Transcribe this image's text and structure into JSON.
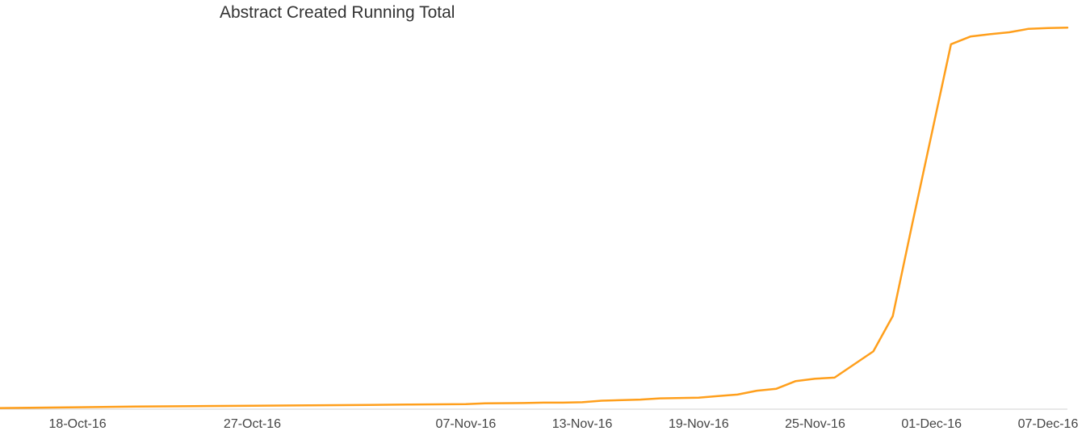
{
  "chart_data": {
    "type": "line",
    "title": "Abstract Created Running Total",
    "xlabel": "",
    "ylabel": "",
    "line_color": "#FF9F1C",
    "axis_color": "#D0D0D0",
    "grid": false,
    "x_ticks": [
      "18-Oct-16",
      "27-Oct-16",
      "07-Nov-16",
      "13-Nov-16",
      "19-Nov-16",
      "25-Nov-16",
      "01-Dec-16",
      "07-Dec-16"
    ],
    "ylim": [
      0,
      1000
    ],
    "series": [
      {
        "points": [
          {
            "x": "2016-10-14",
            "y": 3
          },
          {
            "x": "2016-10-18",
            "y": 5
          },
          {
            "x": "2016-10-21",
            "y": 7
          },
          {
            "x": "2016-10-24",
            "y": 8
          },
          {
            "x": "2016-10-27",
            "y": 9
          },
          {
            "x": "2016-10-30",
            "y": 10
          },
          {
            "x": "2016-11-02",
            "y": 11
          },
          {
            "x": "2016-11-04",
            "y": 12
          },
          {
            "x": "2016-11-07",
            "y": 13
          },
          {
            "x": "2016-11-08",
            "y": 15
          },
          {
            "x": "2016-11-10",
            "y": 16
          },
          {
            "x": "2016-11-11",
            "y": 17
          },
          {
            "x": "2016-11-12",
            "y": 17
          },
          {
            "x": "2016-11-13",
            "y": 18
          },
          {
            "x": "2016-11-14",
            "y": 22
          },
          {
            "x": "2016-11-16",
            "y": 25
          },
          {
            "x": "2016-11-17",
            "y": 28
          },
          {
            "x": "2016-11-19",
            "y": 30
          },
          {
            "x": "2016-11-20",
            "y": 34
          },
          {
            "x": "2016-11-21",
            "y": 38
          },
          {
            "x": "2016-11-22",
            "y": 48
          },
          {
            "x": "2016-11-23",
            "y": 53
          },
          {
            "x": "2016-11-24",
            "y": 73
          },
          {
            "x": "2016-11-25",
            "y": 79
          },
          {
            "x": "2016-11-26",
            "y": 82
          },
          {
            "x": "2016-11-28",
            "y": 150
          },
          {
            "x": "2016-11-29",
            "y": 242
          },
          {
            "x": "2016-11-30",
            "y": 480
          },
          {
            "x": "2016-12-02",
            "y": 948
          },
          {
            "x": "2016-12-03",
            "y": 968
          },
          {
            "x": "2016-12-04",
            "y": 974
          },
          {
            "x": "2016-12-05",
            "y": 979
          },
          {
            "x": "2016-12-06",
            "y": 988
          },
          {
            "x": "2016-12-07",
            "y": 990
          },
          {
            "x": "2016-12-08",
            "y": 991
          }
        ]
      }
    ]
  }
}
